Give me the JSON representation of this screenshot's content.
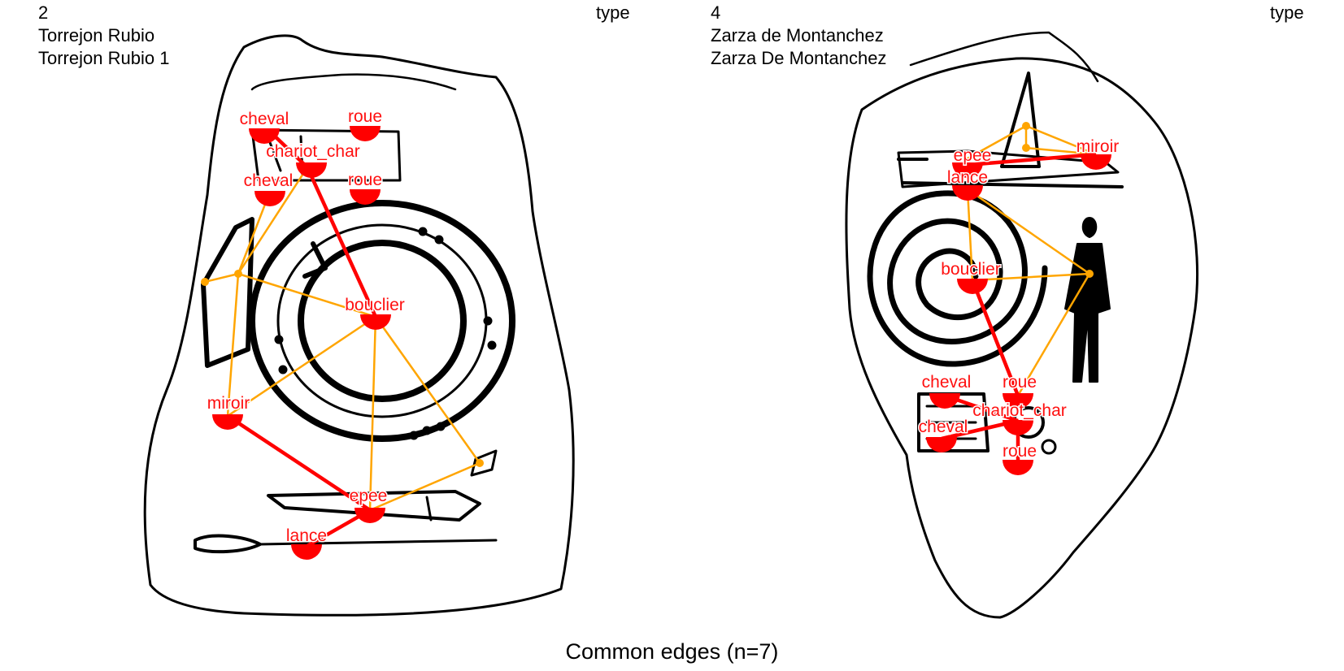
{
  "panels": [
    {
      "number": "2",
      "site": "Torrejon Rubio",
      "name": "Torrejon Rubio 1",
      "type_label": "type",
      "nodes": [
        "cheval",
        "roue",
        "chariot_char",
        "cheval",
        "roue",
        "bouclier",
        "miroir",
        "epee",
        "lance"
      ]
    },
    {
      "number": "4",
      "site": "Zarza de Montanchez",
      "name": "Zarza De Montanchez",
      "type_label": "type",
      "nodes": [
        "epee",
        "miroir",
        "lance",
        "bouclier",
        "cheval",
        "roue",
        "chariot_char",
        "cheval",
        "roue"
      ]
    }
  ],
  "caption": "Common edges (n=7)",
  "colors": {
    "node": "#ff0000",
    "common_edge": "#ff0000",
    "other_edge": "#ffa500",
    "outline": "#000000"
  }
}
